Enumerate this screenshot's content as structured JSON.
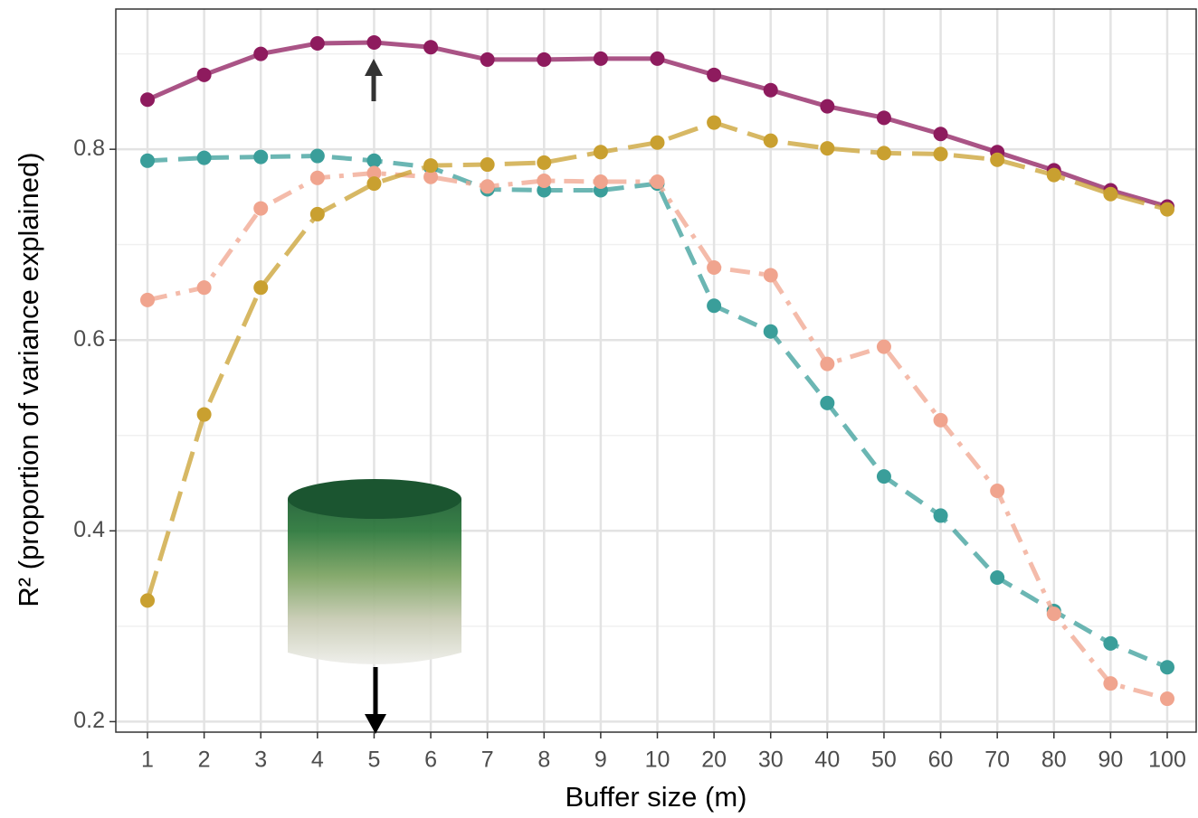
{
  "chart_data": {
    "type": "line",
    "x_label": "Buffer size (m)",
    "y_label": "R² (proportion of variance explained)",
    "categories": [
      "1",
      "2",
      "3",
      "4",
      "5",
      "6",
      "7",
      "8",
      "9",
      "10",
      "20",
      "30",
      "40",
      "50",
      "60",
      "70",
      "80",
      "90",
      "100"
    ],
    "ylim": [
      0.189,
      0.947
    ],
    "yticks": [
      0.2,
      0.4,
      0.6,
      0.8
    ],
    "minor_yticks": [
      0.3,
      0.5,
      0.7,
      0.9
    ],
    "grid": true,
    "series": [
      {
        "color": "#8e1b5e",
        "dash": "solid",
        "values": [
          0.852,
          0.878,
          0.9,
          0.911,
          0.912,
          0.907,
          0.894,
          0.894,
          0.895,
          0.895,
          0.878,
          0.862,
          0.845,
          0.833,
          0.816,
          0.797,
          0.778,
          0.757,
          0.74
        ]
      },
      {
        "color": "#3a9e9a",
        "dash": "dashed",
        "values": [
          0.788,
          0.791,
          0.792,
          0.793,
          0.788,
          0.781,
          0.758,
          0.757,
          0.757,
          0.764,
          0.636,
          0.609,
          0.534,
          0.457,
          0.416,
          0.351,
          0.316,
          0.282,
          0.257
        ]
      },
      {
        "color": "#f0a48e",
        "dash": "dashdot",
        "values": [
          0.642,
          0.655,
          0.738,
          0.77,
          0.775,
          0.771,
          0.761,
          0.767,
          0.766,
          0.766,
          0.676,
          0.668,
          0.575,
          0.593,
          0.516,
          0.442,
          0.313,
          0.24,
          0.224
        ]
      },
      {
        "color": "#c9a030",
        "dash": "longdash",
        "values": [
          0.327,
          0.522,
          0.655,
          0.732,
          0.764,
          0.783,
          0.784,
          0.786,
          0.797,
          0.807,
          0.828,
          0.809,
          0.801,
          0.796,
          0.795,
          0.789,
          0.773,
          0.753,
          0.737
        ]
      }
    ]
  }
}
